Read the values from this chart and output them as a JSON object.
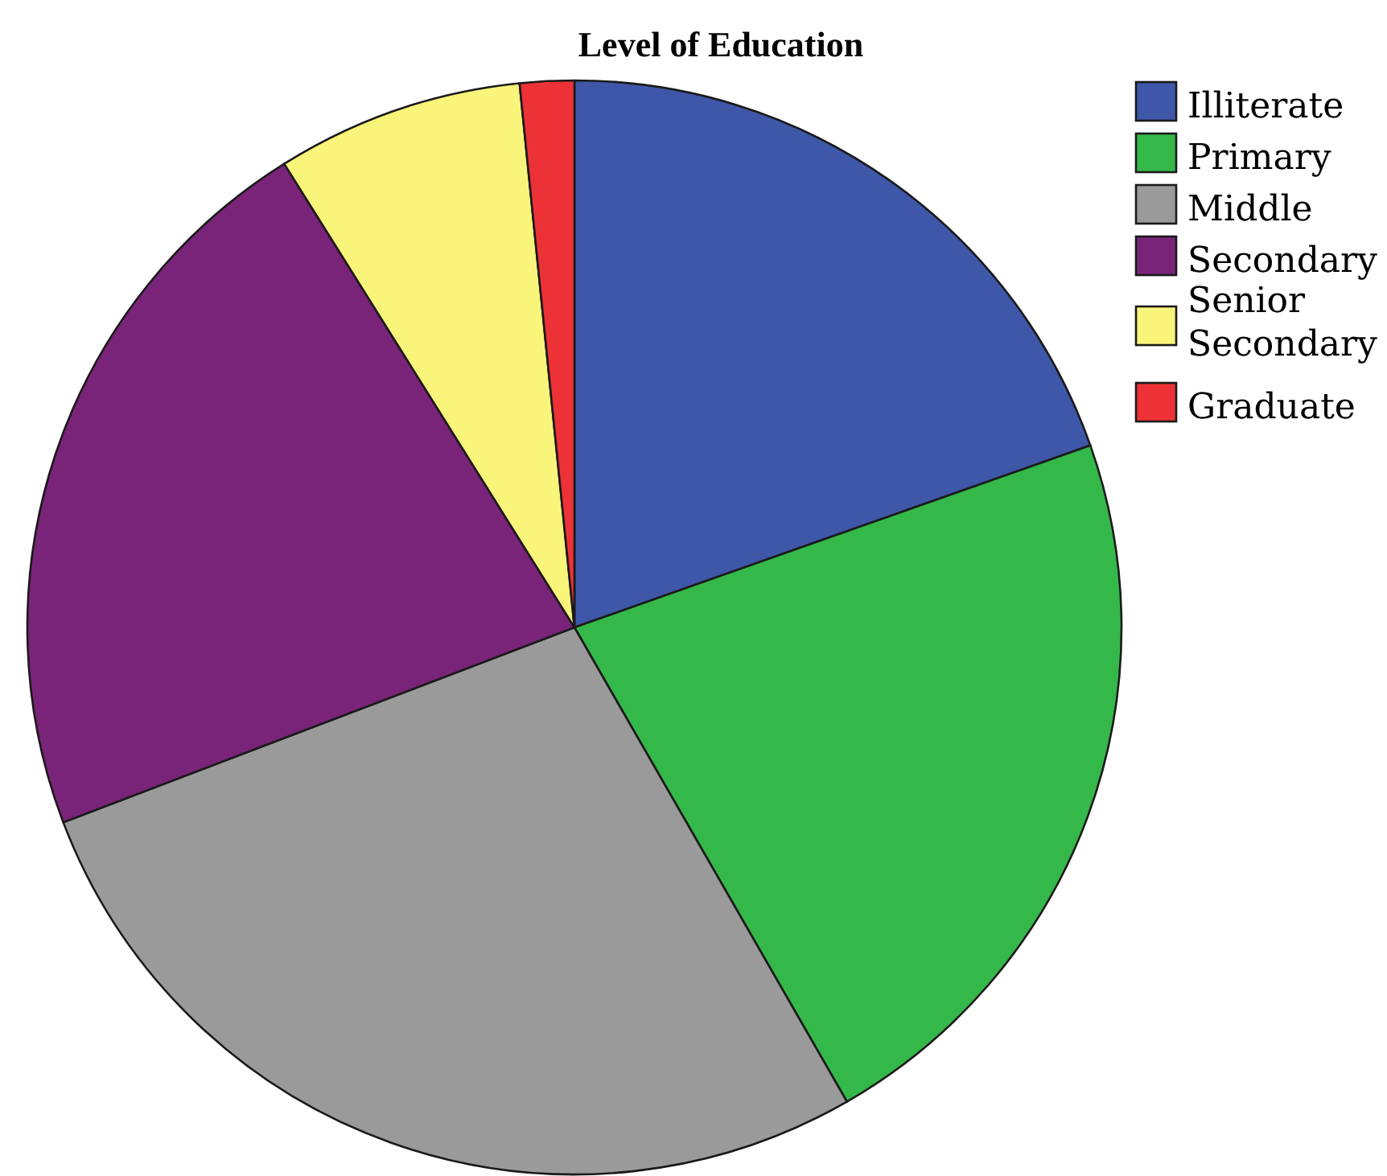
{
  "chart_data": {
    "type": "pie",
    "title": "Level of Education",
    "categories": [
      "Illiterate",
      "Primary",
      "Middle",
      "Secondary",
      "Senior Secondary",
      "Graduate"
    ],
    "values": [
      19.6,
      22.1,
      27.5,
      21.9,
      7.3,
      1.6
    ],
    "colors": [
      "#3f57a8",
      "#35b84a",
      "#9a9a9a",
      "#7a2479",
      "#f9f47a",
      "#ec3237"
    ],
    "legend": "top right"
  }
}
